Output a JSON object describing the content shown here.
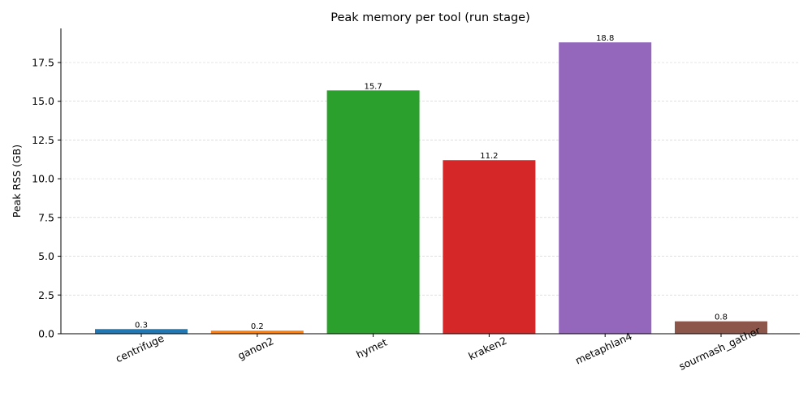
{
  "chart_data": {
    "type": "bar",
    "title": "Peak memory per tool (run stage)",
    "xlabel": "",
    "ylabel": "Peak RSS (GB)",
    "categories": [
      "centrifuge",
      "ganon2",
      "hymet",
      "kraken2",
      "metaphlan4",
      "sourmash_gather"
    ],
    "values": [
      0.3,
      0.2,
      15.7,
      11.2,
      18.8,
      0.8
    ],
    "data_labels": [
      "0.3",
      "0.2",
      "15.7",
      "11.2",
      "18.8",
      "0.8"
    ],
    "colors": [
      "#1f77b4",
      "#ff7f0e",
      "#2ca02c",
      "#d62728",
      "#9467bd",
      "#8c564b"
    ],
    "ylim": [
      0,
      19.7
    ],
    "yticks": [
      0,
      2.5,
      5,
      7.5,
      10,
      12.5,
      15,
      17.5
    ],
    "ytick_labels": [
      "0.0",
      "2.5",
      "5.0",
      "7.5",
      "10.0",
      "12.5",
      "15.0",
      "17.5"
    ],
    "grid": "y-dashed",
    "legend": "none"
  }
}
